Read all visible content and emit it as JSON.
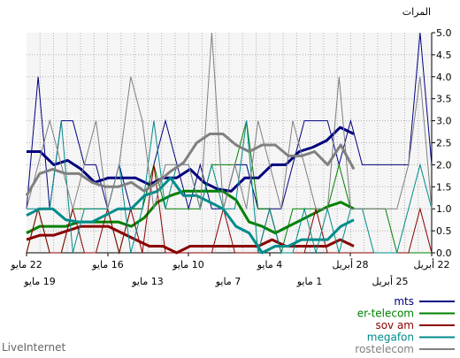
{
  "chart_data": {
    "type": "line",
    "ylabel": "المرات",
    "ylim": [
      0,
      5
    ],
    "yticks": [
      "0.0",
      "0.5",
      "1.0",
      "1.5",
      "2.0",
      "2.5",
      "3.0",
      "3.5",
      "4.0",
      "4.5",
      "5.0"
    ],
    "x_labels_top": [
      "22 مايو",
      "16 مايو",
      "10 مايو",
      "4 مايو",
      "28 أبريل",
      "22 أبريل"
    ],
    "x_labels_bottom": [
      "19 مايو",
      "13 مايو",
      "7 مايو",
      "1 مايو",
      "25 أبريل"
    ],
    "grid": true,
    "legend_position": "bottom-right",
    "series": [
      {
        "name": "mts",
        "color": "#000080",
        "raw": [
          1,
          4,
          1,
          3,
          3,
          2,
          2,
          1,
          2,
          1,
          1,
          2,
          3,
          2,
          1,
          2,
          1,
          1,
          2,
          2,
          1,
          1,
          1,
          2,
          3,
          3,
          3,
          2,
          3,
          2,
          2,
          2,
          2,
          2,
          5,
          2
        ],
        "trend": [
          2.3,
          2.3,
          2.0,
          2.1,
          1.9,
          1.6,
          1.7,
          1.7,
          1.7,
          1.55,
          1.7,
          1.7,
          1.9,
          1.6,
          1.45,
          1.4,
          1.7,
          1.7,
          2.0,
          2.0,
          2.3,
          2.4,
          2.55,
          2.85,
          2.7
        ]
      },
      {
        "name": "er-telecom",
        "color": "#008000",
        "raw": [
          0,
          1,
          0,
          0,
          1,
          1,
          1,
          1,
          0,
          1,
          1,
          2,
          1,
          1,
          1,
          1,
          2,
          2,
          2,
          3,
          1,
          1,
          0,
          1,
          1,
          1,
          1,
          2,
          1,
          1,
          1,
          1,
          0,
          0,
          0,
          0
        ],
        "trend": [
          0.45,
          0.6,
          0.6,
          0.6,
          0.7,
          0.7,
          0.7,
          0.7,
          0.6,
          0.8,
          1.15,
          1.3,
          1.4,
          1.4,
          1.4,
          1.4,
          1.2,
          0.7,
          0.6,
          0.45,
          0.6,
          0.75,
          0.9,
          1.05,
          1.15,
          1.0
        ]
      },
      {
        "name": "sov am",
        "color": "#8B0000",
        "raw": [
          0,
          1,
          0,
          0,
          1,
          0,
          0,
          1,
          0,
          1,
          0,
          2,
          0,
          0,
          0,
          0,
          0,
          1,
          0,
          0,
          0,
          1,
          0,
          0,
          0,
          1,
          0,
          0,
          0,
          0,
          0,
          0,
          0,
          0,
          1,
          0
        ],
        "trend": [
          0.3,
          0.4,
          0.4,
          0.5,
          0.6,
          0.6,
          0.6,
          0.45,
          0.3,
          0.15,
          0.15,
          0.0,
          0.15,
          0.15,
          0.15,
          0.15,
          0.15,
          0.15,
          0.3,
          0.15,
          0.15,
          0.15,
          0.15,
          0.3,
          0.15
        ]
      },
      {
        "name": "megafon",
        "color": "#008B8B",
        "raw": [
          1,
          1,
          1,
          3,
          0,
          1,
          1,
          1,
          2,
          0,
          1,
          3,
          1,
          2,
          2,
          1,
          2,
          1,
          1,
          3,
          0,
          1,
          0,
          0,
          1,
          0,
          1,
          0,
          1,
          1,
          0,
          0,
          0,
          1,
          2,
          1
        ],
        "trend": [
          0.85,
          1.0,
          1.0,
          0.75,
          0.7,
          0.7,
          0.85,
          1.0,
          1.0,
          1.3,
          1.4,
          1.7,
          1.3,
          1.3,
          1.15,
          1.0,
          0.6,
          0.45,
          0.0,
          0.15,
          0.15,
          0.3,
          0.3,
          0.3,
          0.6,
          0.75
        ]
      },
      {
        "name": "rostelecom",
        "color": "#808080",
        "raw": [
          1,
          2,
          3,
          2,
          1,
          2,
          3,
          1,
          2,
          4,
          3,
          1,
          2,
          2,
          2,
          1,
          5,
          1,
          2,
          1,
          3,
          2,
          1,
          3,
          2,
          1,
          1,
          4,
          1,
          1,
          1,
          1,
          1,
          2,
          4,
          1
        ],
        "trend": [
          1.3,
          1.8,
          1.9,
          1.8,
          1.8,
          1.6,
          1.5,
          1.5,
          1.6,
          1.4,
          1.6,
          1.85,
          2.05,
          2.5,
          2.7,
          2.7,
          2.45,
          2.3,
          2.45,
          2.45,
          2.2,
          2.2,
          2.3,
          2.0,
          2.45,
          1.9
        ]
      }
    ]
  },
  "footer": {
    "brand": "LiveInternet"
  }
}
